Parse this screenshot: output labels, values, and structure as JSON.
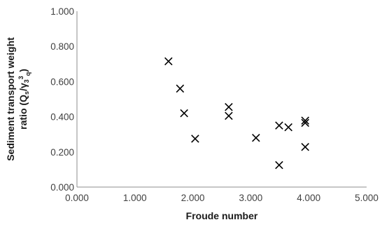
{
  "chart_data": {
    "type": "scatter",
    "title": "",
    "xlabel": "Froude number",
    "ylabel_lines": [
      "Sediment transport  weight",
      "ratio (Q"
    ],
    "ylabel_subscript_s": "s",
    "ylabel_mid": "/γ",
    "ylabel_subscript_3": "3",
    "ylabel_sup_3": "3",
    "ylabel_subscript_q": "q",
    "ylabel_end": ")",
    "xlim": [
      0,
      5
    ],
    "ylim": [
      0,
      1
    ],
    "x_ticks": [
      "0.000",
      "1.000",
      "2.000",
      "3.000",
      "4.000",
      "5.000"
    ],
    "y_ticks": [
      "0.000",
      "0.200",
      "0.400",
      "0.600",
      "0.800",
      "1.000"
    ],
    "grid": false,
    "legend": "none",
    "marker": "x",
    "marker_color": "#000000",
    "points": [
      {
        "x": 1.58,
        "y": 0.715
      },
      {
        "x": 1.78,
        "y": 0.56
      },
      {
        "x": 1.85,
        "y": 0.42
      },
      {
        "x": 2.04,
        "y": 0.275
      },
      {
        "x": 2.62,
        "y": 0.455
      },
      {
        "x": 2.62,
        "y": 0.405
      },
      {
        "x": 3.09,
        "y": 0.28
      },
      {
        "x": 3.49,
        "y": 0.35
      },
      {
        "x": 3.49,
        "y": 0.125
      },
      {
        "x": 3.65,
        "y": 0.34
      },
      {
        "x": 3.94,
        "y": 0.378
      },
      {
        "x": 3.94,
        "y": 0.365
      },
      {
        "x": 3.94,
        "y": 0.228
      }
    ]
  }
}
